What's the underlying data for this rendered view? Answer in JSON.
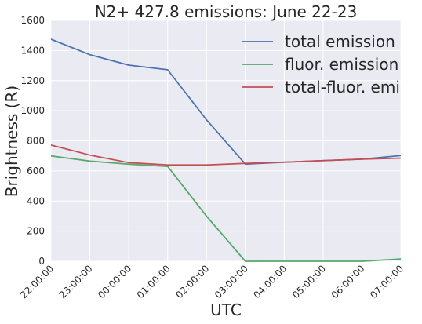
{
  "chart_data": {
    "type": "line",
    "title": "N2+ 427.8 emissions: June 22-23",
    "xlabel": "UTC",
    "ylabel": "Brightness (R)",
    "categories": [
      "22:00:00",
      "23:00:00",
      "00:00:00",
      "01:00:00",
      "02:00:00",
      "03:00:00",
      "04:00:00",
      "05:00:00",
      "06:00:00",
      "07:00:00"
    ],
    "ylim": [
      0,
      1600
    ],
    "yticks": [
      0,
      200,
      400,
      600,
      800,
      1000,
      1200,
      1400,
      1600
    ],
    "grid": true,
    "legend_position": "top-right",
    "series": [
      {
        "name": "total emission",
        "color": "#4c72b0",
        "values": [
          1475,
          1372,
          1303,
          1272,
          940,
          645,
          658,
          668,
          678,
          702
        ]
      },
      {
        "name": "fluor. emission",
        "color": "#55a868",
        "values": [
          700,
          665,
          645,
          630,
          300,
          0,
          0,
          0,
          0,
          15
        ]
      },
      {
        "name": "total-fluor. emi",
        "color": "#c44e52",
        "values": [
          772,
          705,
          655,
          640,
          640,
          650,
          658,
          668,
          678,
          685
        ]
      }
    ]
  }
}
